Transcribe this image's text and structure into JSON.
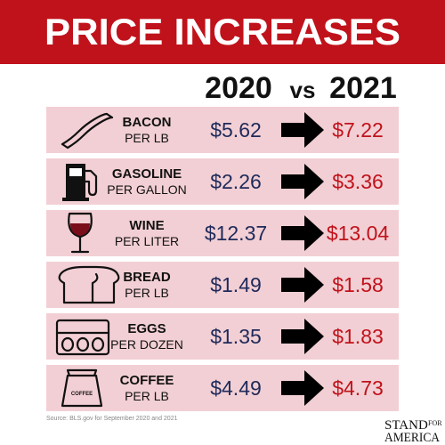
{
  "header": {
    "title": "PRICE INCREASES"
  },
  "columns": {
    "year_a": "2020",
    "vs": "vs",
    "year_b": "2021"
  },
  "rows": [
    {
      "item": "BACON",
      "unit": "PER LB",
      "price_2020": "$5.62",
      "price_2021": "$7.22"
    },
    {
      "item": "GASOLINE",
      "unit": "PER GALLON",
      "price_2020": "$2.26",
      "price_2021": "$3.36"
    },
    {
      "item": "WINE",
      "unit": "PER LITER",
      "price_2020": "$12.37",
      "price_2021": "$13.04"
    },
    {
      "item": "BREAD",
      "unit": "PER LB",
      "price_2020": "$1.49",
      "price_2021": "$1.58"
    },
    {
      "item": "EGGS",
      "unit": "PER DOZEN",
      "price_2020": "$1.35",
      "price_2021": "$1.83"
    },
    {
      "item": "COFFEE",
      "unit": "PER LB",
      "price_2020": "$4.49",
      "price_2021": "$4.73"
    }
  ],
  "coffee_icon_label": "COFFEE",
  "source": "Source: BLS.gov for September 2020 and 2021",
  "brand": {
    "stand": "STAND",
    "for": "FOR",
    "america": "AMERICA"
  }
}
